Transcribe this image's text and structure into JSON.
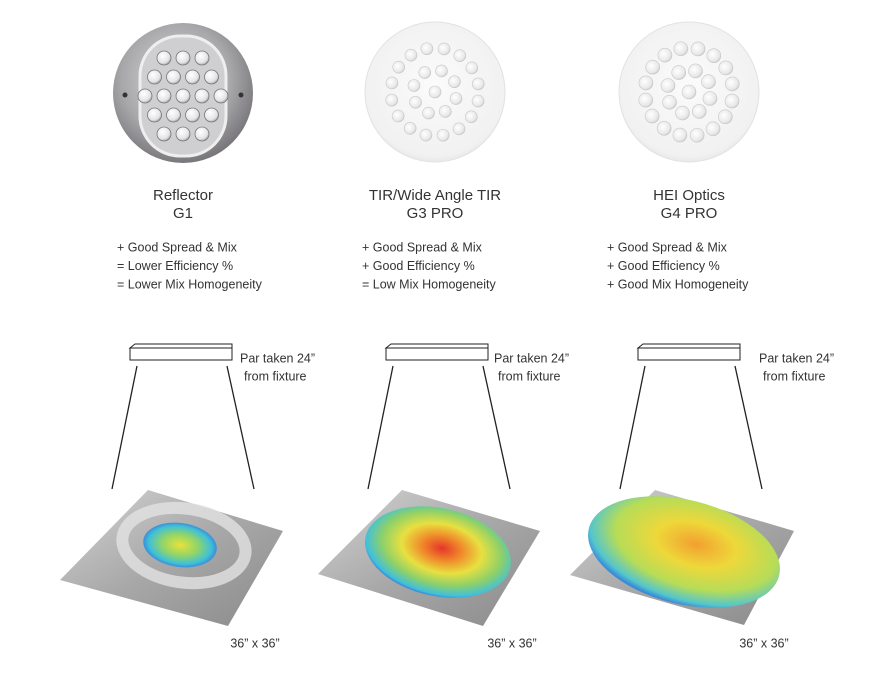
{
  "columns": [
    {
      "name": "Reflector",
      "model": "G1",
      "features": [
        "+ Good Spread & Mix",
        "= Lower Efficiency %",
        "= Lower Mix Homogeneity"
      ],
      "note": [
        "Par taken 24”",
        "from fixture"
      ],
      "size": "36” x 36”"
    },
    {
      "name": "TIR/Wide Angle TIR",
      "model": "G3 PRO",
      "features": [
        "+ Good Spread & Mix",
        "+ Good Efficiency %",
        "= Low Mix Homogeneity"
      ],
      "note": [
        "Par taken 24”",
        "from fixture"
      ],
      "size": "36” x 36”"
    },
    {
      "name": "HEI Optics",
      "model": "G4 PRO",
      "features": [
        "+ Good Spread & Mix",
        "+ Good Efficiency %",
        "+ Good Mix Homogeneity"
      ],
      "note": [
        "Par taken 24”",
        "from fixture"
      ],
      "size": "36” x 36”"
    }
  ]
}
